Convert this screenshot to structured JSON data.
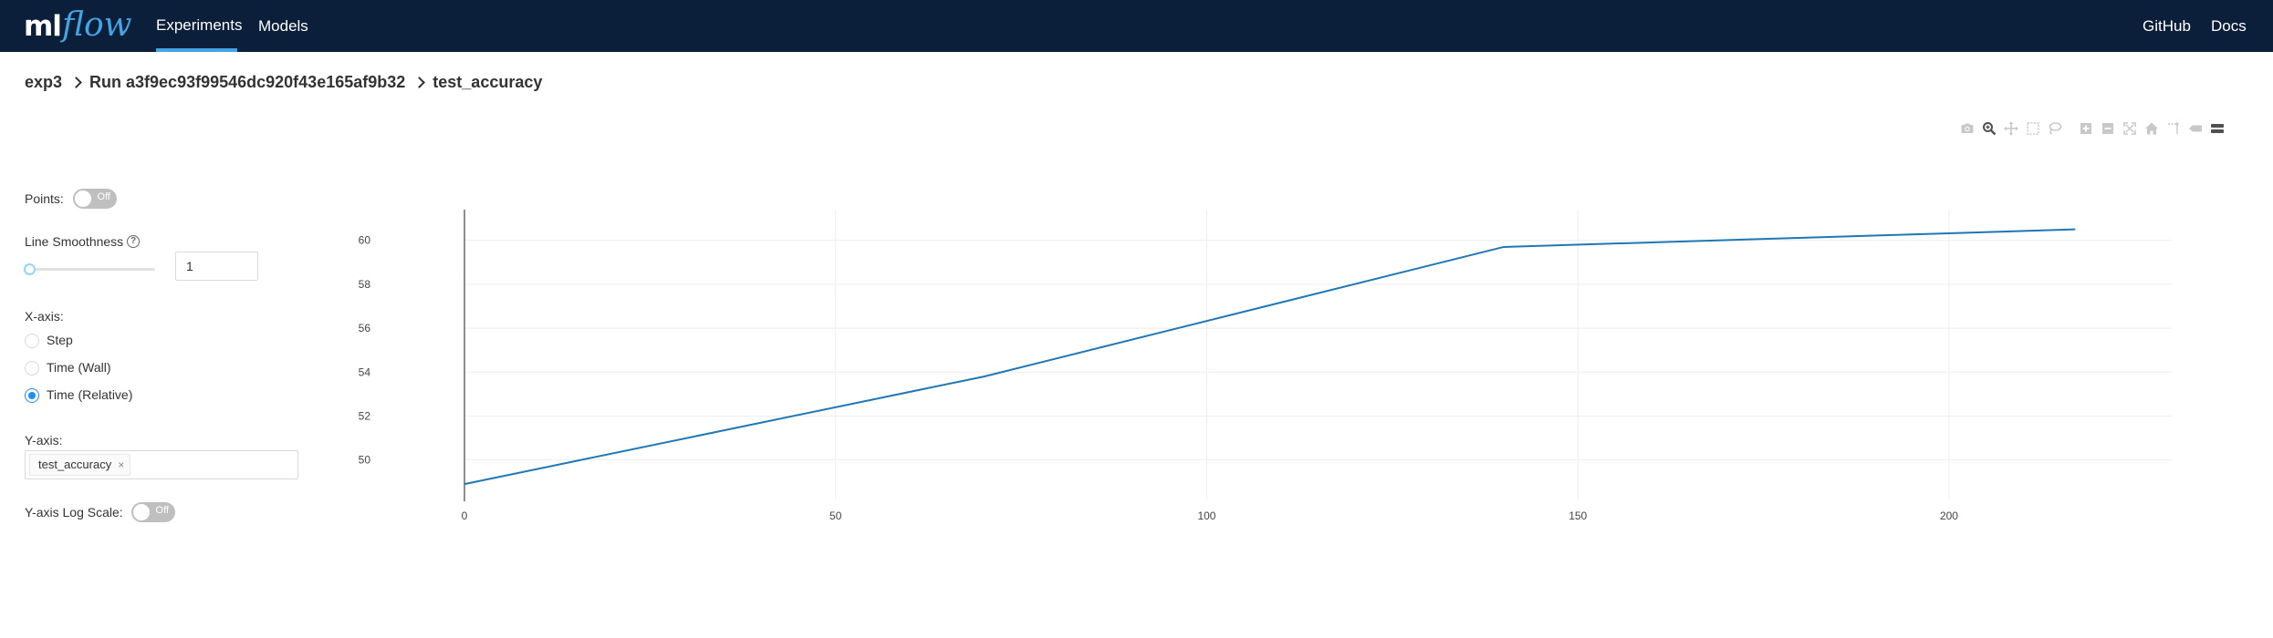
{
  "nav": {
    "logo_ml": "ml",
    "logo_flow": "flow",
    "links": [
      "Experiments",
      "Models"
    ],
    "right_links": [
      "GitHub",
      "Docs"
    ]
  },
  "breadcrumb": [
    "exp3",
    "Run a3f9ec93f99546dc920f43e165af9b32",
    "test_accuracy"
  ],
  "controls": {
    "points_label": "Points:",
    "points_toggle": "Off",
    "smoothness_label": "Line Smoothness",
    "smoothness_value": "1",
    "xaxis_label": "X-axis:",
    "xaxis_options": [
      "Step",
      "Time (Wall)",
      "Time (Relative)"
    ],
    "xaxis_selected": "Time (Relative)",
    "yaxis_label": "Y-axis:",
    "yaxis_tag": "test_accuracy",
    "tag_remove": "×",
    "logscale_label": "Y-axis Log Scale:",
    "logscale_toggle": "Off"
  },
  "modebar_icons": [
    "camera-icon",
    "zoom-icon",
    "pan-icon",
    "box-select-icon",
    "lasso-select-icon",
    "zoom-in-icon",
    "zoom-out-icon",
    "autoscale-icon",
    "reset-axes-icon",
    "spike-lines-icon",
    "hover-closest-icon",
    "hover-compare-icon"
  ],
  "chart_data": {
    "type": "line",
    "x": [
      0,
      70,
      140,
      217
    ],
    "series": [
      {
        "values": [
          48.9,
          53.8,
          59.7,
          60.5
        ],
        "color": "#1f77b4"
      }
    ],
    "xticks": [
      "0",
      "50",
      "100",
      "150",
      "200"
    ],
    "yticks": [
      "50",
      "52",
      "54",
      "56",
      "58",
      "60"
    ],
    "xlim": [
      0,
      230
    ],
    "ylim": [
      48.2,
      61.4
    ],
    "grid": true
  }
}
